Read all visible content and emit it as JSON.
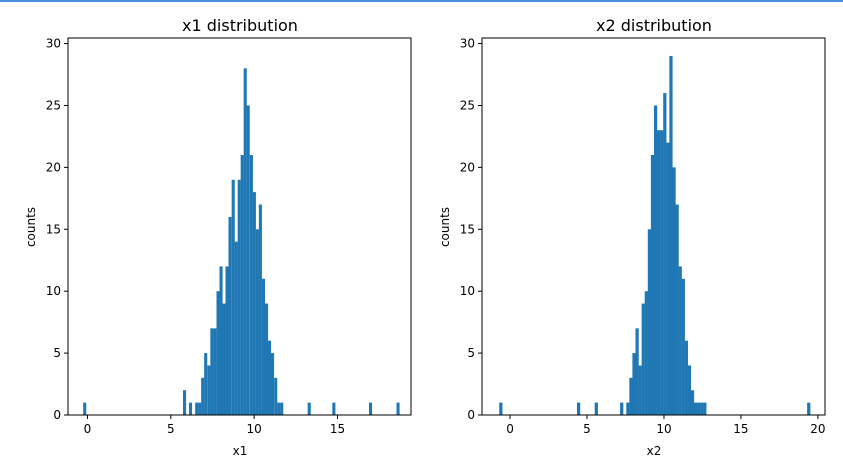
{
  "chart_data": [
    {
      "type": "bar",
      "title": "x1 distribution",
      "xlabel": "x1",
      "ylabel": "counts",
      "xlim": [
        -1.17,
        19.41
      ],
      "ylim": [
        0,
        30.45
      ],
      "xticks": [
        0,
        5,
        10,
        15
      ],
      "yticks": [
        0,
        5,
        10,
        15,
        20,
        25,
        30
      ],
      "bar_color": "#1f77b4",
      "bin_width": 0.185,
      "bins": [
        [
          -0.26,
          1
        ],
        [
          5.73,
          2
        ],
        [
          6.09,
          1
        ],
        [
          6.46,
          1
        ],
        [
          6.64,
          1
        ],
        [
          6.82,
          3
        ],
        [
          7.0,
          5
        ],
        [
          7.19,
          4
        ],
        [
          7.37,
          7
        ],
        [
          7.55,
          7
        ],
        [
          7.74,
          10
        ],
        [
          7.92,
          12
        ],
        [
          8.1,
          9
        ],
        [
          8.28,
          12
        ],
        [
          8.46,
          16
        ],
        [
          8.65,
          19
        ],
        [
          8.83,
          14
        ],
        [
          9.01,
          19
        ],
        [
          9.19,
          21
        ],
        [
          9.37,
          28
        ],
        [
          9.55,
          25
        ],
        [
          9.74,
          21
        ],
        [
          9.92,
          18
        ],
        [
          10.1,
          15
        ],
        [
          10.28,
          17
        ],
        [
          10.47,
          11
        ],
        [
          10.65,
          9
        ],
        [
          10.83,
          6
        ],
        [
          11.01,
          5
        ],
        [
          11.2,
          3
        ],
        [
          11.38,
          1
        ],
        [
          11.56,
          1
        ],
        [
          13.21,
          1
        ],
        [
          14.69,
          1
        ],
        [
          16.89,
          1
        ],
        [
          18.54,
          1
        ]
      ]
    },
    {
      "type": "bar",
      "title": "x2 distribution",
      "xlabel": "x2",
      "ylabel": "counts",
      "xlim": [
        -1.82,
        20.46
      ],
      "ylim": [
        0,
        30.45
      ],
      "xticks": [
        0,
        5,
        10,
        15,
        20
      ],
      "yticks": [
        0,
        5,
        10,
        15,
        20,
        25,
        30
      ],
      "bar_color": "#1f77b4",
      "bin_width": 0.21,
      "bins": [
        [
          -0.7,
          1
        ],
        [
          4.35,
          1
        ],
        [
          5.5,
          1
        ],
        [
          7.15,
          1
        ],
        [
          7.55,
          1
        ],
        [
          7.75,
          3
        ],
        [
          7.95,
          5
        ],
        [
          8.15,
          7
        ],
        [
          8.35,
          4
        ],
        [
          8.55,
          9
        ],
        [
          8.75,
          10
        ],
        [
          8.95,
          15
        ],
        [
          9.15,
          21
        ],
        [
          9.35,
          25
        ],
        [
          9.55,
          23
        ],
        [
          9.75,
          23
        ],
        [
          9.95,
          26
        ],
        [
          10.15,
          22
        ],
        [
          10.35,
          29
        ],
        [
          10.55,
          20
        ],
        [
          10.75,
          17
        ],
        [
          10.95,
          12
        ],
        [
          11.15,
          11
        ],
        [
          11.35,
          6
        ],
        [
          11.55,
          4
        ],
        [
          11.75,
          2
        ],
        [
          11.95,
          1
        ],
        [
          12.15,
          1
        ],
        [
          12.35,
          1
        ],
        [
          12.55,
          1
        ],
        [
          19.3,
          1
        ]
      ]
    }
  ]
}
